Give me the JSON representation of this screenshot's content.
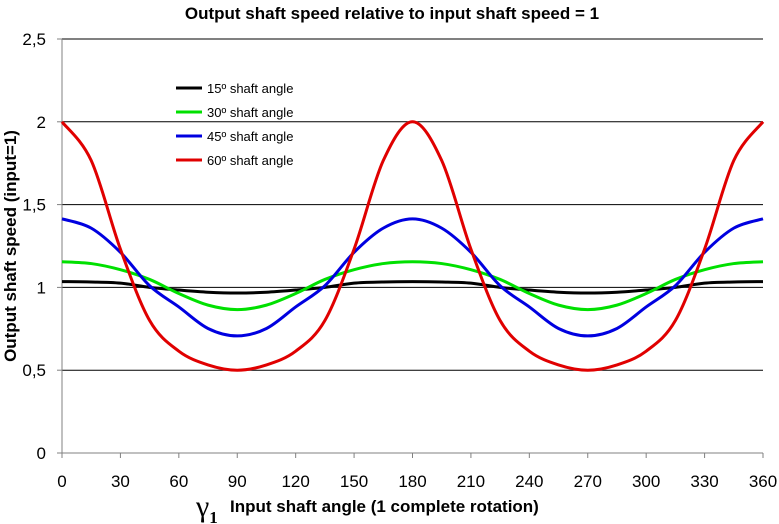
{
  "chart_data": {
    "type": "line",
    "title": "Output shaft speed relative to input shaft speed = 1",
    "xlabel": "Input shaft angle (1 complete rotation)",
    "xlabel_symbol": "γ",
    "xlabel_symbol_subscript": "1",
    "ylabel": "Output shaft speed (input=1)",
    "xlim": [
      0,
      360
    ],
    "ylim": [
      0,
      2.5
    ],
    "x_ticks": [
      0,
      30,
      60,
      90,
      120,
      150,
      180,
      210,
      240,
      270,
      300,
      330,
      360
    ],
    "y_ticks": [
      "0",
      "0,5",
      "1",
      "1,5",
      "2",
      "2,5"
    ],
    "y_tick_values": [
      0,
      0.5,
      1,
      1.5,
      2,
      2.5
    ],
    "grid": "horizontal",
    "legend_position": "top-left",
    "x": [
      0,
      15,
      30,
      45,
      60,
      75,
      90,
      105,
      120,
      135,
      150,
      165,
      180,
      195,
      210,
      225,
      240,
      255,
      270,
      285,
      300,
      315,
      330,
      345,
      360
    ],
    "series": [
      {
        "name": "15º shaft angle",
        "color": "#000000",
        "values": [
          1.035,
          1.033,
          1.026,
          1.0,
          0.984,
          0.971,
          0.966,
          0.971,
          0.984,
          1.0,
          1.026,
          1.033,
          1.035,
          1.033,
          1.026,
          1.0,
          0.984,
          0.971,
          0.966,
          0.971,
          0.984,
          1.0,
          1.026,
          1.033,
          1.035
        ]
      },
      {
        "name": "30º shaft angle",
        "color": "#00e000",
        "values": [
          1.155,
          1.144,
          1.107,
          1.048,
          0.963,
          0.893,
          0.866,
          0.893,
          0.963,
          1.048,
          1.107,
          1.144,
          1.155,
          1.144,
          1.107,
          1.048,
          0.963,
          0.893,
          0.866,
          0.893,
          0.963,
          1.048,
          1.107,
          1.144,
          1.155
        ]
      },
      {
        "name": "45º shaft angle",
        "color": "#0000e0",
        "values": [
          1.414,
          1.358,
          1.212,
          1.01,
          0.882,
          0.752,
          0.707,
          0.752,
          0.882,
          1.01,
          1.212,
          1.358,
          1.414,
          1.358,
          1.212,
          1.01,
          0.882,
          0.752,
          0.707,
          0.752,
          0.882,
          1.01,
          1.212,
          1.358,
          1.414
        ]
      },
      {
        "name": "60º shaft angle",
        "color": "#e00000",
        "values": [
          2.0,
          1.766,
          1.231,
          0.8,
          0.615,
          0.532,
          0.5,
          0.532,
          0.615,
          0.8,
          1.231,
          1.766,
          2.0,
          1.766,
          1.231,
          0.8,
          0.615,
          0.532,
          0.5,
          0.532,
          0.615,
          0.8,
          1.231,
          1.766,
          2.0
        ]
      }
    ]
  }
}
